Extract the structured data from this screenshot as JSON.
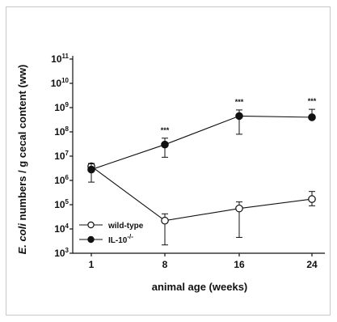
{
  "chart_data": {
    "type": "line",
    "xlabel": "animal age (weeks)",
    "ylabel_italic": "E. coli",
    "ylabel_rest": " numbers / g cecal content (ww)",
    "x_categories": [
      "1",
      "8",
      "16",
      "24"
    ],
    "y_scale": "log",
    "ylim": [
      1000,
      100000000000
    ],
    "y_ticks": [
      {
        "base": "10",
        "exp": "3",
        "value": 1000
      },
      {
        "base": "10",
        "exp": "4",
        "value": 10000
      },
      {
        "base": "10",
        "exp": "5",
        "value": 100000
      },
      {
        "base": "10",
        "exp": "6",
        "value": 1000000
      },
      {
        "base": "10",
        "exp": "7",
        "value": 10000000
      },
      {
        "base": "10",
        "exp": "8",
        "value": 100000000
      },
      {
        "base": "10",
        "exp": "9",
        "value": 1000000000
      },
      {
        "base": "10",
        "exp": "10",
        "value": 10000000000
      },
      {
        "base": "10",
        "exp": "11",
        "value": 100000000000
      }
    ],
    "series": [
      {
        "name": "wild-type",
        "marker": "open-circle",
        "values": [
          3800000,
          22000,
          70000,
          170000
        ],
        "err_upper": [
          5000000,
          42000,
          130000,
          350000
        ],
        "err_lower": [
          2800000,
          2200,
          4500,
          90000
        ]
      },
      {
        "name": "IL-10",
        "name_superscript": "-/-",
        "marker": "filled-circle",
        "values": [
          2800000,
          30000000,
          450000000,
          400000000
        ],
        "err_upper": [
          4800000,
          55000000,
          800000000,
          850000000
        ],
        "err_lower": [
          850000,
          9000000,
          80000000,
          380000000
        ]
      }
    ],
    "annotations": [
      {
        "x_index": 1,
        "text": "***"
      },
      {
        "x_index": 2,
        "text": "***"
      },
      {
        "x_index": 3,
        "text": "***"
      }
    ],
    "legend_position": "bottom-left",
    "grid": false
  }
}
